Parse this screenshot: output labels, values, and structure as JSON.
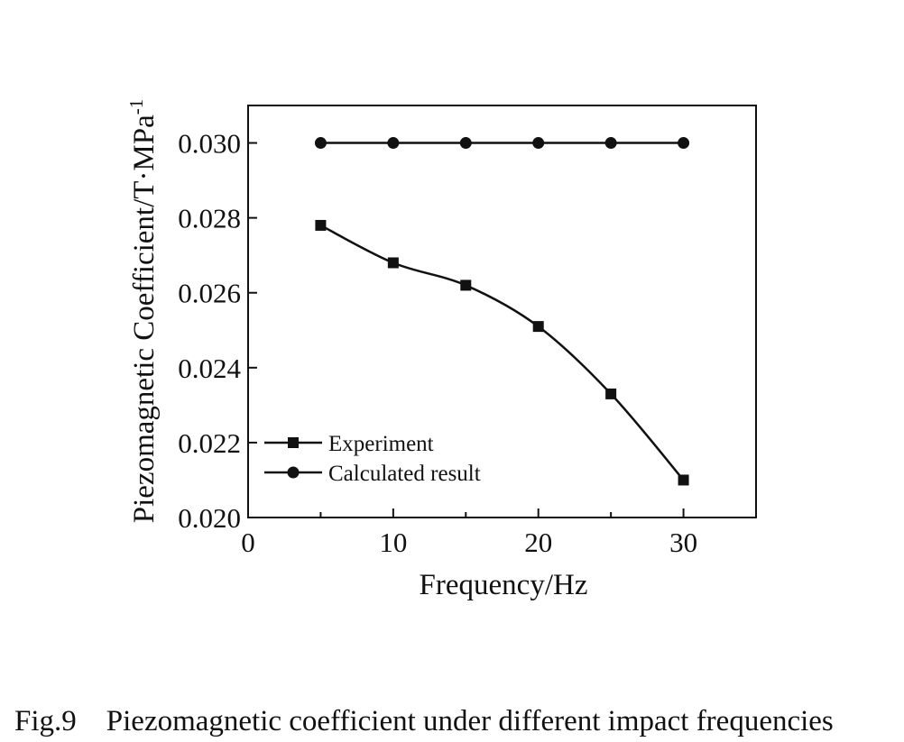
{
  "figure": {
    "caption": "Fig.9    Piezomagnetic coefficient under different impact frequencies"
  },
  "chart_data": {
    "type": "line",
    "xlabel": "Frequency/Hz",
    "ylabel": "Piezomagnetic Coefficient/T·MPa",
    "ylabel_superscript": "-1",
    "xlim": [
      0,
      35
    ],
    "ylim": [
      0.02,
      0.031
    ],
    "x_ticks": [
      0,
      10,
      20,
      30
    ],
    "x_tick_labels": [
      "0",
      "10",
      "20",
      "30"
    ],
    "y_ticks": [
      0.02,
      0.022,
      0.024,
      0.026,
      0.028,
      0.03
    ],
    "y_tick_labels": [
      "0.020",
      "0.022",
      "0.024",
      "0.026",
      "0.028",
      "0.030"
    ],
    "grid": false,
    "legend_position": "bottom-left",
    "x": [
      5,
      10,
      15,
      20,
      25,
      30
    ],
    "series": [
      {
        "name": "Experiment",
        "marker": "square",
        "values": [
          0.0278,
          0.0268,
          0.0262,
          0.0251,
          0.0233,
          0.021
        ]
      },
      {
        "name": "Calculated result",
        "marker": "circle",
        "values": [
          0.03,
          0.03,
          0.03,
          0.03,
          0.03,
          0.03
        ]
      }
    ]
  }
}
